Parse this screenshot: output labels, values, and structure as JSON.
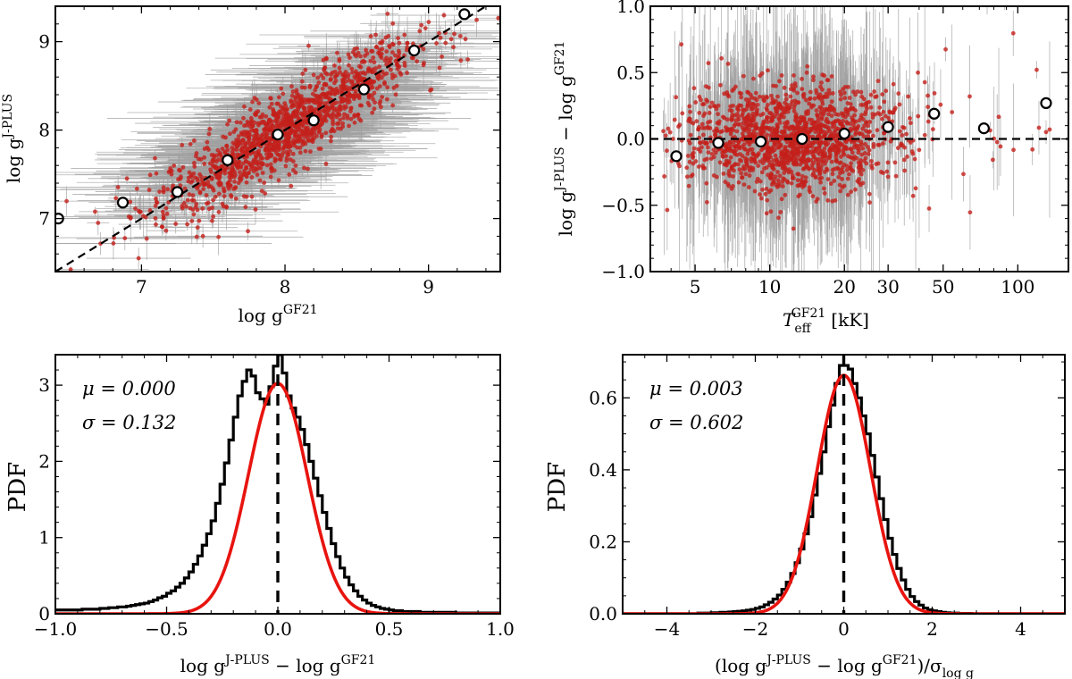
{
  "chart_data": [
    {
      "id": "top-left",
      "type": "scatter",
      "xlabel": "log g^GF21",
      "ylabel": "log g^J-PLUS",
      "xlim": [
        6.4,
        9.5
      ],
      "ylim": [
        6.4,
        9.4
      ],
      "xticks": [
        7,
        8,
        9
      ],
      "yticks": [
        7,
        8,
        9
      ],
      "reference_line": "y = x (dashed)",
      "binned_means": {
        "x": [
          6.42,
          6.87,
          7.25,
          7.6,
          7.95,
          8.2,
          8.55,
          8.9,
          9.25
        ],
        "y": [
          7.0,
          7.18,
          7.3,
          7.66,
          7.95,
          8.11,
          8.46,
          8.9,
          9.31
        ]
      }
    },
    {
      "id": "top-right",
      "type": "scatter",
      "xscale": "log",
      "xlabel": "T_eff^GF21 [kK]",
      "ylabel": "log g^J-PLUS − log g^GF21",
      "xlim": [
        3.3,
        160
      ],
      "ylim": [
        -1.0,
        1.0
      ],
      "xticks": [
        5,
        10,
        20,
        30,
        50,
        100
      ],
      "xtick_labels": [
        "5",
        "10",
        "20",
        "30",
        "50",
        "100"
      ],
      "yticks": [
        -1.0,
        -0.5,
        0.0,
        0.5,
        1.0
      ],
      "ytick_labels": [
        "−1.0",
        "−0.5",
        "0.0",
        "0.5",
        "1.0"
      ],
      "reference_line": "y = 0 (dashed)",
      "binned_means": {
        "x": [
          4.2,
          6.2,
          9.2,
          13.5,
          20,
          30,
          46,
          73,
          130
        ],
        "y": [
          -0.13,
          -0.03,
          -0.02,
          0.0,
          0.04,
          0.09,
          0.19,
          0.08,
          0.27
        ]
      }
    },
    {
      "id": "bottom-left",
      "type": "histogram",
      "xlabel": "log g^J-PLUS − log g^GF21",
      "ylabel": "PDF",
      "xlim": [
        -1.0,
        1.0
      ],
      "ylim": [
        0,
        3.4
      ],
      "xticks": [
        -1.0,
        -0.5,
        0.0,
        0.5,
        1.0
      ],
      "xtick_labels": [
        "−1.0",
        "−0.5",
        "0.0",
        "0.5",
        "1.0"
      ],
      "yticks": [
        0,
        1,
        2,
        3
      ],
      "ytick_labels": [
        "0",
        "1",
        "2",
        "3"
      ],
      "annotations": {
        "mu": "μ = 0.000",
        "sigma": "σ = 0.132"
      },
      "fit": {
        "mu": 0.0,
        "sigma": 0.132,
        "color": "#e8140f"
      },
      "reference_line": "x = 0 (dashed)",
      "bin_width": 0.02,
      "hist_values": [
        0.05,
        0.05,
        0.05,
        0.05,
        0.05,
        0.05,
        0.06,
        0.06,
        0.06,
        0.06,
        0.07,
        0.07,
        0.08,
        0.08,
        0.09,
        0.09,
        0.1,
        0.11,
        0.12,
        0.13,
        0.14,
        0.16,
        0.18,
        0.21,
        0.23,
        0.27,
        0.3,
        0.35,
        0.4,
        0.47,
        0.55,
        0.65,
        0.76,
        0.9,
        1.05,
        1.22,
        1.45,
        1.7,
        1.98,
        2.28,
        2.58,
        2.86,
        3.05,
        3.2,
        3.12,
        2.9,
        2.82,
        2.75,
        2.98,
        3.25,
        3.4,
        3.16,
        2.86,
        2.7,
        2.58,
        2.42,
        2.22,
        2.0,
        1.78,
        1.55,
        1.33,
        1.12,
        0.92,
        0.75,
        0.6,
        0.48,
        0.38,
        0.3,
        0.23,
        0.18,
        0.14,
        0.11,
        0.09,
        0.07,
        0.06,
        0.05,
        0.04,
        0.04,
        0.03,
        0.03,
        0.03,
        0.03,
        0.02,
        0.02,
        0.02,
        0.02,
        0.02,
        0.02,
        0.02,
        0.02,
        0.01,
        0.01,
        0.01,
        0.01,
        0.01,
        0.01,
        0.01,
        0.01,
        0.01,
        0.01
      ]
    },
    {
      "id": "bottom-right",
      "type": "histogram",
      "xlabel": "(log g^J-PLUS − log g^GF21)/σ_log g",
      "ylabel": "PDF",
      "xlim": [
        -5,
        5
      ],
      "ylim": [
        0,
        0.72
      ],
      "xticks": [
        -4,
        -2,
        0,
        2,
        4
      ],
      "xtick_labels": [
        "−4",
        "−2",
        "0",
        "2",
        "4"
      ],
      "yticks": [
        0.0,
        0.2,
        0.4,
        0.6
      ],
      "ytick_labels": [
        "0.0",
        "0.2",
        "0.4",
        "0.6"
      ],
      "annotations": {
        "mu": "μ = 0.003",
        "sigma": "σ = 0.602"
      },
      "fit": {
        "mu": 0.003,
        "sigma": 0.602,
        "color": "#e8140f"
      },
      "reference_line": "x = 0 (dashed)",
      "bin_width": 0.1,
      "hist_values": [
        0,
        0,
        0,
        0,
        0,
        0,
        0,
        0,
        0,
        0,
        0,
        0,
        0,
        0,
        0,
        0,
        0,
        0.002,
        0.002,
        0.002,
        0.003,
        0.003,
        0.004,
        0.004,
        0.005,
        0.006,
        0.007,
        0.008,
        0.01,
        0.012,
        0.015,
        0.019,
        0.025,
        0.032,
        0.041,
        0.052,
        0.068,
        0.088,
        0.112,
        0.142,
        0.18,
        0.222,
        0.27,
        0.33,
        0.39,
        0.45,
        0.52,
        0.58,
        0.64,
        0.69,
        0.69,
        0.68,
        0.64,
        0.6,
        0.55,
        0.5,
        0.44,
        0.38,
        0.32,
        0.262,
        0.21,
        0.165,
        0.126,
        0.094,
        0.068,
        0.048,
        0.034,
        0.024,
        0.016,
        0.011,
        0.008,
        0.006,
        0.004,
        0.003,
        0.002,
        0.002,
        0.001,
        0.001,
        0.001,
        0,
        0,
        0,
        0,
        0,
        0,
        0,
        0,
        0,
        0,
        0,
        0,
        0,
        0,
        0,
        0,
        0,
        0,
        0,
        0,
        0
      ]
    }
  ],
  "colors": {
    "scatter": "#c41f1a",
    "errorbar": "#a0a0a0",
    "fit": "#e8140f",
    "hist": "#000000"
  }
}
